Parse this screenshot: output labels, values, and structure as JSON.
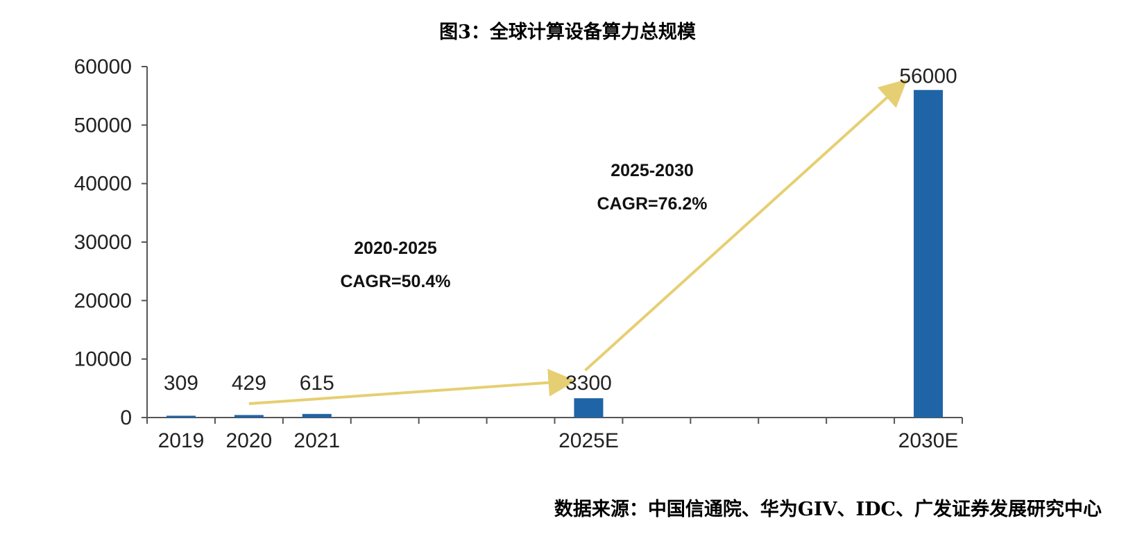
{
  "figure_title": "图3：全球计算设备算力总规模",
  "source_note": "数据来源：中国信通院、华为GIV、IDC、广发证券发展研究中心",
  "chart_data": {
    "type": "bar",
    "categories": [
      "2019",
      "2020",
      "2021",
      "2025E",
      "2030E"
    ],
    "values": [
      309,
      429,
      615,
      3300,
      56000
    ],
    "value_labels": [
      "309",
      "429",
      "615",
      "3300",
      "56000"
    ],
    "ylim": [
      0,
      60000
    ],
    "yticks": [
      "0",
      "10000",
      "20000",
      "30000",
      "40000",
      "50000",
      "60000"
    ],
    "bar_color": "#1f64a6",
    "arrow_color": "#e6cf72",
    "grid": false,
    "annotations": [
      {
        "period": "2020-2025",
        "cagr": "CAGR=50.4%"
      },
      {
        "period": "2025-2030",
        "cagr": "CAGR=76.2%"
      }
    ]
  }
}
